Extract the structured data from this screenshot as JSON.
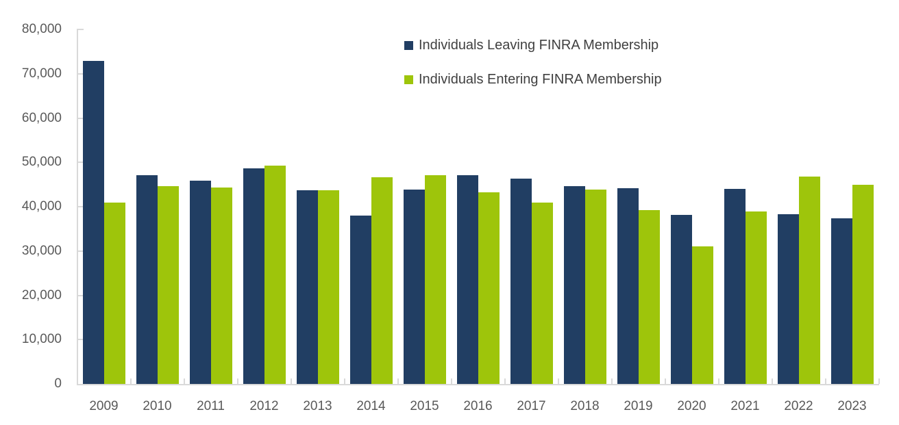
{
  "chart_data": {
    "type": "bar",
    "title": "",
    "xlabel": "",
    "ylabel": "",
    "categories": [
      "2009",
      "2010",
      "2011",
      "2012",
      "2013",
      "2014",
      "2015",
      "2016",
      "2017",
      "2018",
      "2019",
      "2020",
      "2021",
      "2022",
      "2023"
    ],
    "series": [
      {
        "name": "Individuals Leaving FINRA Membership",
        "color": "#213E63",
        "values": [
          72900,
          47100,
          45900,
          48600,
          43700,
          38000,
          43900,
          47100,
          46300,
          44600,
          44200,
          38100,
          44000,
          38300,
          37400
        ]
      },
      {
        "name": "Individuals Entering FINRA Membership",
        "color": "#9EC50B",
        "values": [
          40900,
          44600,
          44400,
          49200,
          43700,
          46600,
          47100,
          43200,
          40900,
          43900,
          39200,
          31000,
          38900,
          46800,
          44900
        ]
      }
    ],
    "ylim": [
      0,
      80000
    ],
    "ytick_interval": 10000,
    "ytick_labels": [
      "0",
      "10,000",
      "20,000",
      "30,000",
      "40,000",
      "50,000",
      "60,000",
      "70,000",
      "80,000"
    ],
    "grid": "off",
    "ticks": "inside",
    "legend_position": "top-center",
    "axis_color": "#D9D9D9",
    "tick_label_color": "#595959",
    "legend_text_color": "#404040"
  }
}
